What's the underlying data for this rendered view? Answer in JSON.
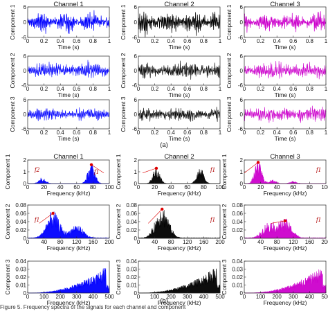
{
  "colors": {
    "channel_1": "#0000ff",
    "channel_2": "#000000",
    "channel_3": "#cc00cc",
    "annotation": "#dd0000",
    "axis": "#222222"
  },
  "panel_labels": {
    "a": "(a)",
    "b": "(b)"
  },
  "caption": "Figure 5. Frequency spectra of the signals for each channel and component",
  "chart_data": [
    {
      "type": "line",
      "panel": "a",
      "channels": [
        "Channel 1",
        "Channel 2",
        "Channel 3"
      ],
      "components": [
        "Component 1",
        "Component 2",
        "Component 3"
      ],
      "xlabel": "Time (s)",
      "xlim": [
        0,
        1
      ],
      "xticks": [
        "0",
        "0.2",
        "0.4",
        "0.6",
        "0.8",
        "1"
      ],
      "ylim": [
        -6,
        6
      ],
      "yticks": [
        "-6",
        "0",
        "6"
      ],
      "series": [
        {
          "channel": "Channel 1",
          "component": "Component 1",
          "amplitude": 4.0
        },
        {
          "channel": "Channel 2",
          "component": "Component 1",
          "amplitude": 4.5
        },
        {
          "channel": "Channel 3",
          "component": "Component 1",
          "amplitude": 4.0
        },
        {
          "channel": "Channel 1",
          "component": "Component 2",
          "amplitude": 3.5
        },
        {
          "channel": "Channel 2",
          "component": "Component 2",
          "amplitude": 3.5
        },
        {
          "channel": "Channel 3",
          "component": "Component 2",
          "amplitude": 3.5
        },
        {
          "channel": "Channel 1",
          "component": "Component 3",
          "amplitude": 3.0
        },
        {
          "channel": "Channel 2",
          "component": "Component 3",
          "amplitude": 3.0
        },
        {
          "channel": "Channel 3",
          "component": "Component 3",
          "amplitude": 3.5
        }
      ]
    },
    {
      "type": "area",
      "panel": "b",
      "channels": [
        "Channel 1",
        "Channel 2",
        "Channel 3"
      ],
      "components": [
        "Component 1",
        "Component 2",
        "Component 3"
      ],
      "xlabel": "Frequency (kHz)",
      "rows": [
        {
          "component": "Component 1",
          "xlim": [
            0,
            100
          ],
          "xticks": [
            "0",
            "20",
            "40",
            "60",
            "80",
            "100"
          ],
          "ylim": [
            0,
            2
          ],
          "yticks": [
            "0",
            "1",
            "2"
          ],
          "peaks": [
            {
              "channel": "Channel 1",
              "freqs": [
                [
                  18,
                  0.5
                ],
                [
                  78,
                  1.6
                ]
              ],
              "markers": [
                78
              ],
              "annotations": [
                "f2",
                "f1"
              ]
            },
            {
              "channel": "Channel 2",
              "freqs": [
                [
                  22,
                  1.3
                ],
                [
                  76,
                  1.2
                ]
              ],
              "markers": [
                22
              ],
              "annotations": [
                "f1"
              ]
            },
            {
              "channel": "Channel 3",
              "freqs": [
                [
                  17,
                  1.8
                ],
                [
                  35,
                  0.3
                ],
                [
                  60,
                  0.2
                ]
              ],
              "markers": [
                17
              ],
              "annotations": [
                "f1"
              ]
            }
          ]
        },
        {
          "component": "Component 2",
          "xlim": [
            0,
            200
          ],
          "xticks": [
            "0",
            "40",
            "80",
            "120",
            "160",
            "200"
          ],
          "ylim": [
            0,
            0.08
          ],
          "yticks": [
            "0",
            "0.02",
            "0.04",
            "0.06",
            "0.08"
          ],
          "peaks": [
            {
              "channel": "Channel 1",
              "freqs": [
                [
                  62,
                  0.06
                ],
                [
                  120,
                  0.03
                ]
              ],
              "markers": [
                62
              ],
              "annotations": [
                "f1"
              ]
            },
            {
              "channel": "Channel 2",
              "freqs": [
                [
                  58,
                  0.07
                ]
              ],
              "markers": [
                58
              ],
              "annotations": [
                "f1"
              ]
            },
            {
              "channel": "Channel 3",
              "freqs": [
                [
                  60,
                  0.035
                ],
                [
                  100,
                  0.042
                ]
              ],
              "markers": [
                100
              ],
              "annotations": [
                "f1"
              ]
            }
          ]
        },
        {
          "component": "Component 3",
          "xlim": [
            0,
            500
          ],
          "xticks": [
            "0",
            "100",
            "200",
            "300",
            "400",
            "500"
          ],
          "ylim": [
            0,
            0.04
          ],
          "yticks": [
            "0",
            "0.01",
            "0.02",
            "0.03",
            "0.04"
          ],
          "peaks": [
            {
              "channel": "Channel 1",
              "max_amplitude": 0.035
            },
            {
              "channel": "Channel 2",
              "max_amplitude": 0.035
            },
            {
              "channel": "Channel 3",
              "max_amplitude": 0.035
            }
          ]
        }
      ]
    }
  ]
}
